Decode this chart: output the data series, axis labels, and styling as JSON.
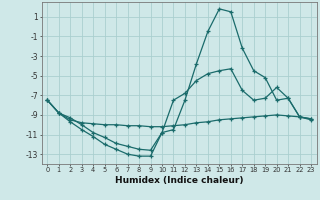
{
  "xlabel": "Humidex (Indice chaleur)",
  "xlim": [
    -0.5,
    23.5
  ],
  "ylim": [
    -14,
    2.5
  ],
  "yticks": [
    1,
    -1,
    -3,
    -5,
    -7,
    -9,
    -11,
    -13
  ],
  "xticks": [
    0,
    1,
    2,
    3,
    4,
    5,
    6,
    7,
    8,
    9,
    10,
    11,
    12,
    13,
    14,
    15,
    16,
    17,
    18,
    19,
    20,
    21,
    22,
    23
  ],
  "background_color": "#cfe8e8",
  "grid_color": "#aacfcf",
  "line_color": "#1a6b6b",
  "curve1_x": [
    0,
    1,
    2,
    3,
    4,
    5,
    6,
    7,
    8,
    9,
    10,
    11,
    12,
    13,
    14,
    15,
    16,
    17,
    18,
    19,
    20,
    21,
    22,
    23
  ],
  "curve1_y": [
    -7.5,
    -8.8,
    -9.7,
    -10.5,
    -11.2,
    -12.0,
    -12.5,
    -13.0,
    -13.2,
    -13.2,
    -10.8,
    -10.5,
    -7.5,
    -3.8,
    -0.5,
    1.8,
    1.5,
    -2.2,
    -4.5,
    -5.2,
    -7.5,
    -7.3,
    -9.2,
    -9.5
  ],
  "curve2_x": [
    0,
    1,
    2,
    3,
    4,
    5,
    6,
    7,
    8,
    9,
    10,
    11,
    12,
    13,
    14,
    15,
    16,
    17,
    18,
    19,
    20,
    21,
    22,
    23
  ],
  "curve2_y": [
    -7.5,
    -8.8,
    -9.5,
    -9.8,
    -9.9,
    -10.0,
    -10.0,
    -10.1,
    -10.1,
    -10.2,
    -10.2,
    -10.1,
    -10.0,
    -9.8,
    -9.7,
    -9.5,
    -9.4,
    -9.3,
    -9.2,
    -9.1,
    -9.0,
    -9.1,
    -9.2,
    -9.4
  ],
  "curve3_x": [
    0,
    1,
    2,
    3,
    4,
    5,
    6,
    7,
    8,
    9,
    10,
    11,
    12,
    13,
    14,
    15,
    16,
    17,
    18,
    19,
    20,
    21,
    22,
    23
  ],
  "curve3_y": [
    -7.5,
    -8.8,
    -9.3,
    -10.0,
    -10.8,
    -11.3,
    -11.9,
    -12.2,
    -12.5,
    -12.6,
    -10.8,
    -7.5,
    -6.8,
    -5.5,
    -4.8,
    -4.5,
    -4.3,
    -6.5,
    -7.5,
    -7.3,
    -6.2,
    -7.3,
    -9.2,
    -9.4
  ]
}
